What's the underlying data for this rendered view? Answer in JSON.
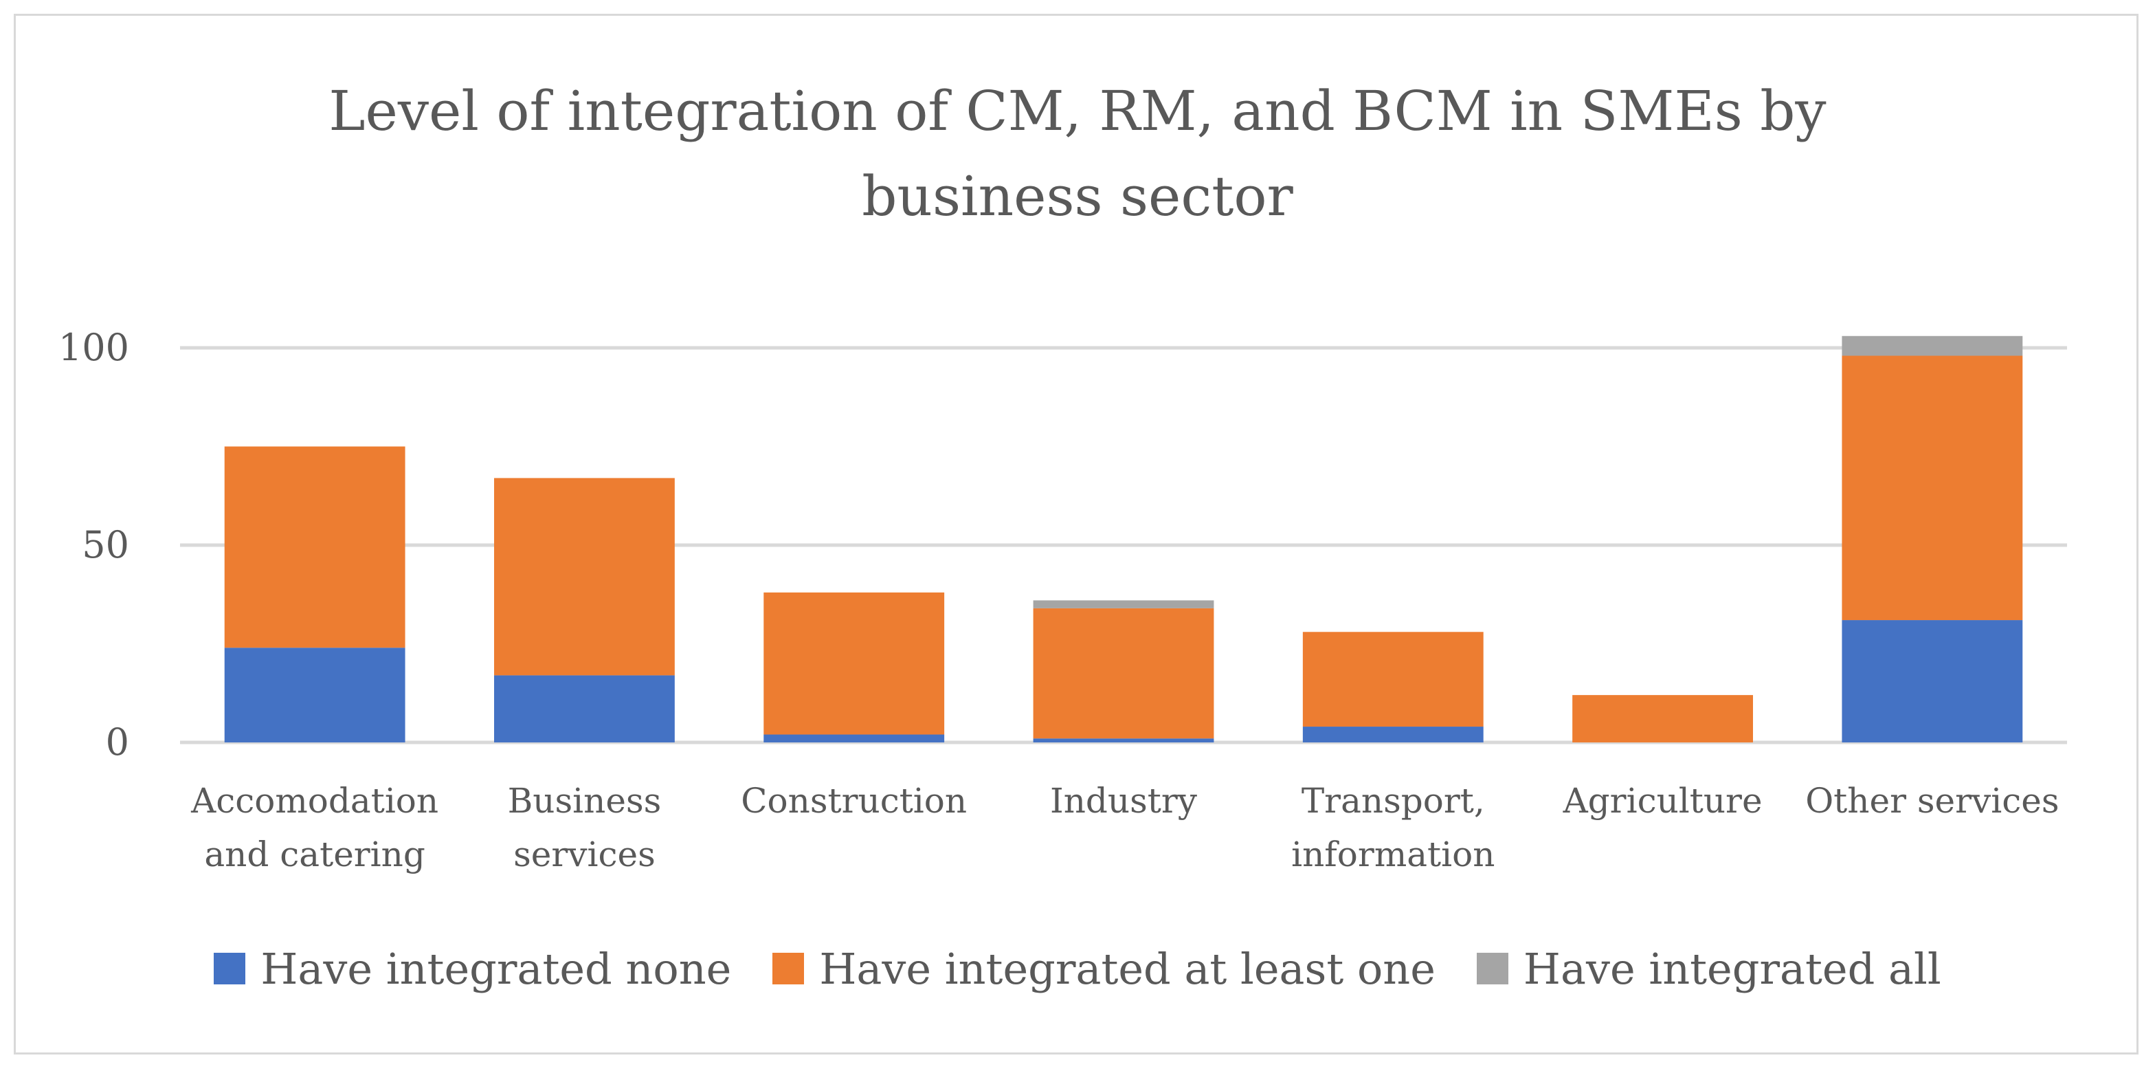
{
  "chart_data": {
    "type": "bar",
    "stacked": true,
    "title": [
      "Level of integration of CM, RM, and BCM in SMEs by",
      "business sector"
    ],
    "categories": [
      [
        "Accomodation",
        "and catering"
      ],
      [
        "Business",
        "services"
      ],
      [
        "Construction"
      ],
      [
        "Industry"
      ],
      [
        "Transport,",
        "information"
      ],
      [
        "Agriculture"
      ],
      [
        "Other services"
      ]
    ],
    "series": [
      {
        "name": "Have integrated none",
        "color": "#4472c4",
        "values": [
          24,
          17,
          2,
          1,
          4,
          0,
          31
        ]
      },
      {
        "name": "Have integrated at least one",
        "color": "#ed7d31",
        "values": [
          51,
          50,
          36,
          33,
          24,
          12,
          67
        ]
      },
      {
        "name": "Have integrated all",
        "color": "#a5a5a5",
        "values": [
          0,
          0,
          0,
          2,
          0,
          0,
          5
        ]
      }
    ],
    "yticks": [
      0,
      50,
      100
    ],
    "ylim": [
      0,
      100
    ],
    "grid": true,
    "legend_position": "bottom"
  }
}
